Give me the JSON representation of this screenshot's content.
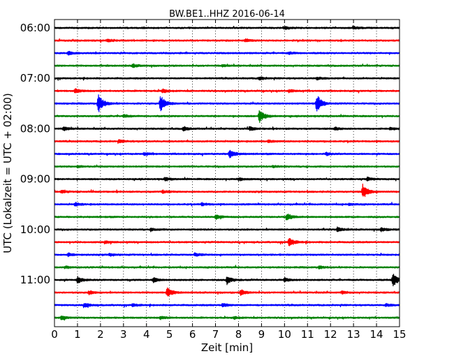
{
  "chart_data": {
    "type": "line",
    "title": "BW.BE1..HHZ 2016-06-14",
    "xlabel": "Zeit  [min]",
    "ylabel": "UTC (Lokalzeit = UTC + 02:00)",
    "xlim": [
      0,
      15
    ],
    "x_ticks": [
      "0",
      "1",
      "2",
      "3",
      "4",
      "5",
      "6",
      "7",
      "8",
      "9",
      "10",
      "11",
      "12",
      "13",
      "14",
      "15"
    ],
    "y_ticks": [
      "06:00",
      "07:00",
      "08:00",
      "09:00",
      "10:00",
      "11:00"
    ],
    "grid": {
      "x": true,
      "y": false,
      "style": "dotted"
    },
    "trace_interval_minutes": 15,
    "trace_colors": [
      "#000000",
      "#ff0000",
      "#0000ff",
      "#008000"
    ],
    "traces": [
      {
        "start": "06:00",
        "events": [
          [
            10.0,
            0.35
          ],
          [
            13.0,
            0.3
          ]
        ]
      },
      {
        "start": "06:15",
        "events": [
          [
            2.3,
            0.3
          ],
          [
            8.3,
            0.3
          ]
        ]
      },
      {
        "start": "06:30",
        "events": [
          [
            0.6,
            0.35
          ],
          [
            10.2,
            0.25
          ]
        ]
      },
      {
        "start": "06:45",
        "events": [
          [
            3.4,
            0.35
          ],
          [
            7.3,
            0.2
          ]
        ]
      },
      {
        "start": "07:00",
        "events": [
          [
            8.9,
            0.35
          ],
          [
            11.4,
            0.3
          ]
        ]
      },
      {
        "start": "07:15",
        "events": [
          [
            0.9,
            0.5
          ],
          [
            4.7,
            0.4
          ],
          [
            10.2,
            0.3
          ]
        ]
      },
      {
        "start": "07:30",
        "events": [
          [
            1.9,
            2.2
          ],
          [
            4.6,
            1.9
          ],
          [
            11.4,
            2.0
          ]
        ]
      },
      {
        "start": "07:45",
        "events": [
          [
            8.9,
            1.5
          ],
          [
            3.0,
            0.3
          ]
        ]
      },
      {
        "start": "08:00",
        "events": [
          [
            0.4,
            0.4
          ],
          [
            5.6,
            0.45
          ],
          [
            8.5,
            0.4
          ],
          [
            12.2,
            0.3
          ],
          [
            14.6,
            0.3
          ]
        ]
      },
      {
        "start": "08:15",
        "events": [
          [
            2.8,
            0.3
          ],
          [
            9.3,
            0.25
          ]
        ]
      },
      {
        "start": "08:30",
        "events": [
          [
            3.9,
            0.3
          ],
          [
            7.6,
            1.0
          ],
          [
            11.8,
            0.3
          ]
        ]
      },
      {
        "start": "08:45",
        "events": [
          [
            1.0,
            0.2
          ],
          [
            9.5,
            0.2
          ]
        ]
      },
      {
        "start": "09:00",
        "events": [
          [
            4.8,
            0.35
          ],
          [
            8.0,
            0.35
          ],
          [
            13.6,
            0.35
          ]
        ]
      },
      {
        "start": "09:15",
        "events": [
          [
            13.4,
            1.6
          ],
          [
            0.3,
            0.3
          ],
          [
            4.7,
            0.3
          ]
        ]
      },
      {
        "start": "09:30",
        "events": [
          [
            0.9,
            0.35
          ],
          [
            6.4,
            0.3
          ],
          [
            12.8,
            0.2
          ]
        ]
      },
      {
        "start": "09:45",
        "events": [
          [
            7.0,
            0.5
          ],
          [
            10.1,
            0.7
          ]
        ]
      },
      {
        "start": "10:00",
        "events": [
          [
            4.2,
            0.3
          ],
          [
            12.3,
            0.5
          ],
          [
            14.2,
            0.4
          ]
        ]
      },
      {
        "start": "10:15",
        "events": [
          [
            10.2,
            1.0
          ],
          [
            2.2,
            0.25
          ]
        ]
      },
      {
        "start": "10:30",
        "events": [
          [
            0.6,
            0.35
          ],
          [
            6.1,
            0.35
          ],
          [
            2.4,
            0.25
          ]
        ]
      },
      {
        "start": "10:45",
        "events": [
          [
            11.5,
            0.35
          ],
          [
            0.5,
            0.2
          ]
        ]
      },
      {
        "start": "11:00",
        "events": [
          [
            1.0,
            0.7
          ],
          [
            7.5,
            0.9
          ],
          [
            14.7,
            1.5
          ],
          [
            4.3,
            0.5
          ],
          [
            10.0,
            0.4
          ]
        ]
      },
      {
        "start": "11:15",
        "events": [
          [
            4.9,
            1.0
          ],
          [
            8.1,
            0.6
          ],
          [
            1.5,
            0.35
          ],
          [
            12.5,
            0.3
          ]
        ]
      },
      {
        "start": "11:30",
        "events": [
          [
            1.3,
            0.5
          ],
          [
            7.3,
            0.45
          ],
          [
            14.4,
            0.3
          ],
          [
            3.4,
            0.3
          ]
        ]
      },
      {
        "start": "11:45",
        "events": [
          [
            0.3,
            0.5
          ],
          [
            4.6,
            0.3
          ],
          [
            7.8,
            0.25
          ]
        ]
      }
    ]
  }
}
